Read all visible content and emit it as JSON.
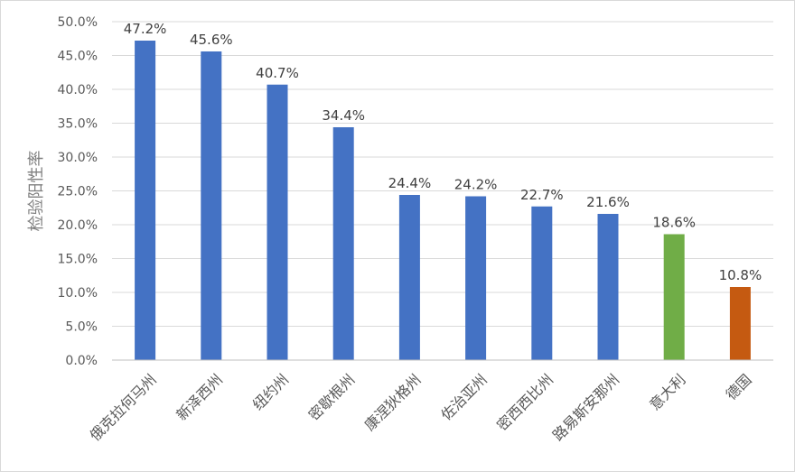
{
  "chart_data": {
    "type": "bar",
    "title": "",
    "xlabel": "",
    "ylabel": "检验阳性率",
    "ylim": [
      0,
      50
    ],
    "y_ticks": [
      "0.0%",
      "5.0%",
      "10.0%",
      "15.0%",
      "20.0%",
      "25.0%",
      "30.0%",
      "35.0%",
      "40.0%",
      "45.0%",
      "50.0%"
    ],
    "grid": "horizontal",
    "legend": "none",
    "categories": [
      "俄克拉何马州",
      "新泽西州",
      "纽约州",
      "密歇根州",
      "康涅狄格州",
      "佐治亚州",
      "密西西比州",
      "路易斯安那州",
      "意大利",
      "德国"
    ],
    "values": [
      47.2,
      45.6,
      40.7,
      34.4,
      24.4,
      24.2,
      22.7,
      21.6,
      18.6,
      10.8
    ],
    "data_labels": [
      "47.2%",
      "45.6%",
      "40.7%",
      "34.4%",
      "24.4%",
      "24.2%",
      "22.7%",
      "21.6%",
      "18.6%",
      "10.8%"
    ],
    "bar_colors": [
      "#4472c4",
      "#4472c4",
      "#4472c4",
      "#4472c4",
      "#4472c4",
      "#4472c4",
      "#4472c4",
      "#4472c4",
      "#70ad47",
      "#c55a11"
    ],
    "colors": {
      "grid": "#d9d9d9",
      "axis": "#bfbfbf"
    }
  }
}
